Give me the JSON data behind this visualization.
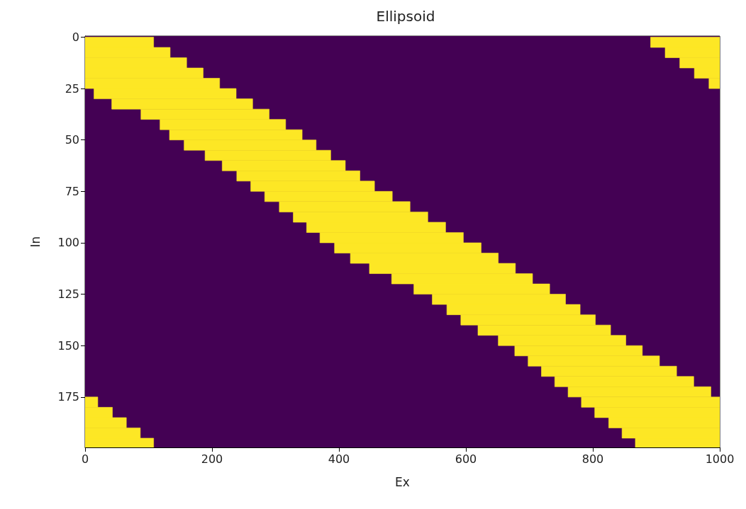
{
  "chart_data": {
    "type": "bar",
    "orientation": "horizontal",
    "title": "Ellipsoid",
    "xlabel": "Ex",
    "ylabel": "In",
    "x": [
      2.5,
      7.5,
      12.5,
      17.5,
      22.5,
      27.5,
      32.5,
      37.5,
      42.5,
      47.5,
      52.5,
      57.5,
      62.5,
      67.5,
      72.5,
      77.5,
      82.5,
      87.5,
      92.5,
      97.5,
      102.5,
      107.5,
      112.5,
      117.5,
      122.5,
      127.5,
      132.5,
      137.5,
      142.5,
      147.5,
      152.5,
      157.5,
      162.5,
      167.5,
      172.5,
      177.5,
      182.5,
      187.5,
      192.5,
      197.5
    ],
    "series": [
      {
        "color": "#fde725",
        "base": [
          0,
          0,
          0,
          0,
          0,
          14,
          42,
          88,
          118,
          133,
          156,
          189,
          216,
          239,
          261,
          283,
          306,
          328,
          349,
          370,
          393,
          418,
          448,
          483,
          518,
          547,
          570,
          592,
          619,
          651,
          677,
          698,
          719,
          740,
          761,
          782,
          803,
          825,
          846,
          867
        ],
        "values": [
          108,
          134,
          160,
          186,
          212,
          224,
          222,
          202,
          198,
          209,
          208,
          198,
          194,
          194,
          195,
          201,
          206,
          212,
          219,
          226,
          231,
          233,
          230,
          222,
          214,
          210,
          210,
          212,
          209,
          201,
          201,
          207,
          213,
          219,
          225,
          218,
          197,
          175,
          154,
          133
        ]
      },
      {
        "color": "#fde725",
        "base": [
          891,
          914,
          937,
          960,
          983,
          null,
          null,
          null,
          null,
          null,
          null,
          null,
          null,
          null,
          null,
          null,
          null,
          null,
          null,
          null,
          null,
          null,
          null,
          null,
          null,
          null,
          null,
          null,
          null,
          null,
          null,
          null,
          null,
          null,
          null,
          0,
          0,
          0,
          0,
          0
        ],
        "values": [
          109,
          86,
          63,
          40,
          17,
          null,
          null,
          null,
          null,
          null,
          null,
          null,
          null,
          null,
          null,
          null,
          null,
          null,
          null,
          null,
          null,
          null,
          null,
          null,
          null,
          null,
          null,
          null,
          null,
          null,
          null,
          null,
          null,
          null,
          null,
          20,
          43,
          65,
          87,
          108
        ]
      }
    ],
    "bands": [
      {
        "axis": "x",
        "from": 0,
        "to": 1000,
        "color": "#440154"
      }
    ],
    "xlim": [
      0,
      1000
    ],
    "xticks": [
      0,
      200,
      400,
      600,
      800,
      1000
    ],
    "ylim": [
      199.5,
      -0.5
    ],
    "yticks": [
      0,
      25,
      50,
      75,
      100,
      125,
      150,
      175
    ],
    "tick_labels": "xy"
  }
}
